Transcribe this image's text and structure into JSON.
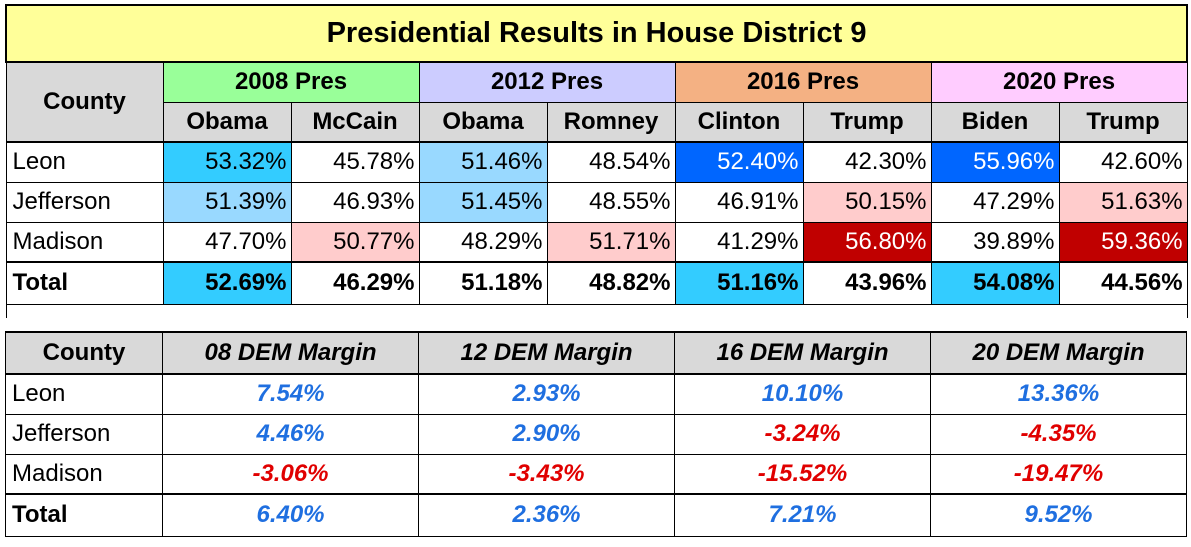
{
  "title": "Presidential Results in House District 9",
  "county_header": "County",
  "elections": [
    {
      "label": "2008 Pres",
      "dem": "Obama",
      "rep": "McCain"
    },
    {
      "label": "2012 Pres",
      "dem": "Obama",
      "rep": "Romney"
    },
    {
      "label": "2016 Pres",
      "dem": "Clinton",
      "rep": "Trump"
    },
    {
      "label": "2020 Pres",
      "dem": "Biden",
      "rep": "Trump"
    }
  ],
  "rows": [
    {
      "county": "Leon",
      "v": [
        "53.32%",
        "45.78%",
        "51.46%",
        "48.54%",
        "52.40%",
        "42.30%",
        "55.96%",
        "42.60%"
      ]
    },
    {
      "county": "Jefferson",
      "v": [
        "51.39%",
        "46.93%",
        "51.45%",
        "48.55%",
        "46.91%",
        "50.15%",
        "47.29%",
        "51.63%"
      ]
    },
    {
      "county": "Madison",
      "v": [
        "47.70%",
        "50.77%",
        "48.29%",
        "51.71%",
        "41.29%",
        "56.80%",
        "39.89%",
        "59.36%"
      ]
    }
  ],
  "total": {
    "county": "Total",
    "v": [
      "52.69%",
      "46.29%",
      "51.18%",
      "48.82%",
      "51.16%",
      "43.96%",
      "54.08%",
      "44.56%"
    ]
  },
  "margin_headers": [
    "08 DEM Margin",
    "12 DEM Margin",
    "16 DEM Margin",
    "20 DEM Margin"
  ],
  "margins": [
    {
      "county": "Leon",
      "v": [
        "7.54%",
        "2.93%",
        "10.10%",
        "13.36%"
      ]
    },
    {
      "county": "Jefferson",
      "v": [
        "4.46%",
        "2.90%",
        "-3.24%",
        "-4.35%"
      ]
    },
    {
      "county": "Madison",
      "v": [
        "-3.06%",
        "-3.43%",
        "-15.52%",
        "-19.47%"
      ]
    }
  ],
  "margin_total": {
    "county": "Total",
    "v": [
      "6.40%",
      "2.36%",
      "7.21%",
      "9.52%"
    ]
  },
  "colors": {
    "title_bg": "#ffff99",
    "header_grey": "#d9d9d9",
    "hdr_2008": "#99ff99",
    "hdr_2012": "#ccccff",
    "hdr_2016": "#f4b183",
    "hdr_2020": "#ffccff",
    "dem_light": "#99d9ff",
    "dem_mid": "#33ccff",
    "dem_strong": "#0066ff",
    "rep_light": "#ffcccc",
    "rep_strong": "#c00000",
    "margin_dem": "#1f6fe0",
    "margin_rep": "#e00000"
  }
}
